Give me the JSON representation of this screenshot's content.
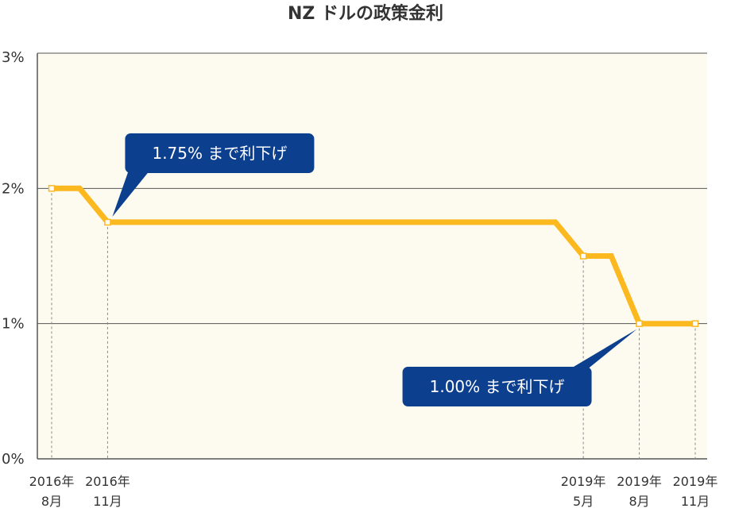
{
  "chart_data": {
    "type": "line",
    "title": "NZ ドルの政策金利",
    "xlabel": "",
    "ylabel": "",
    "ylim": [
      0,
      3
    ],
    "y_ticks": [
      "0%",
      "1%",
      "2%",
      "3%"
    ],
    "x_ticks": [
      {
        "line1": "2016年",
        "line2": "8月",
        "x": 0
      },
      {
        "line1": "2016年",
        "line2": "11月",
        "x": 2
      },
      {
        "line1": "2019年",
        "line2": "5月",
        "x": 19
      },
      {
        "line1": "2019年",
        "line2": "8月",
        "x": 21
      },
      {
        "line1": "2019年",
        "line2": "11月",
        "x": 23
      }
    ],
    "series": [
      {
        "color": "#fbb81f",
        "points": [
          {
            "x": 0,
            "y": 2.0
          },
          {
            "x": 1,
            "y": 2.0
          },
          {
            "x": 2,
            "y": 1.75
          },
          {
            "x": 18,
            "y": 1.75
          },
          {
            "x": 19,
            "y": 1.5
          },
          {
            "x": 20,
            "y": 1.5
          },
          {
            "x": 21,
            "y": 1.0
          },
          {
            "x": 23,
            "y": 1.0
          }
        ],
        "markers": [
          0,
          2,
          19,
          21,
          23
        ]
      }
    ],
    "annotations": [
      {
        "text": "1.75% まで利下げ",
        "x": 2,
        "y": 1.75,
        "placement": "above-right"
      },
      {
        "text": "1.00% まで利下げ",
        "x": 21,
        "y": 1.0,
        "placement": "below-left"
      }
    ],
    "grid": true,
    "colors": {
      "plot_background": "#fdfbf0",
      "line": "#fbb81f",
      "callout": "#0d3f8f",
      "grid": "#555555"
    }
  }
}
